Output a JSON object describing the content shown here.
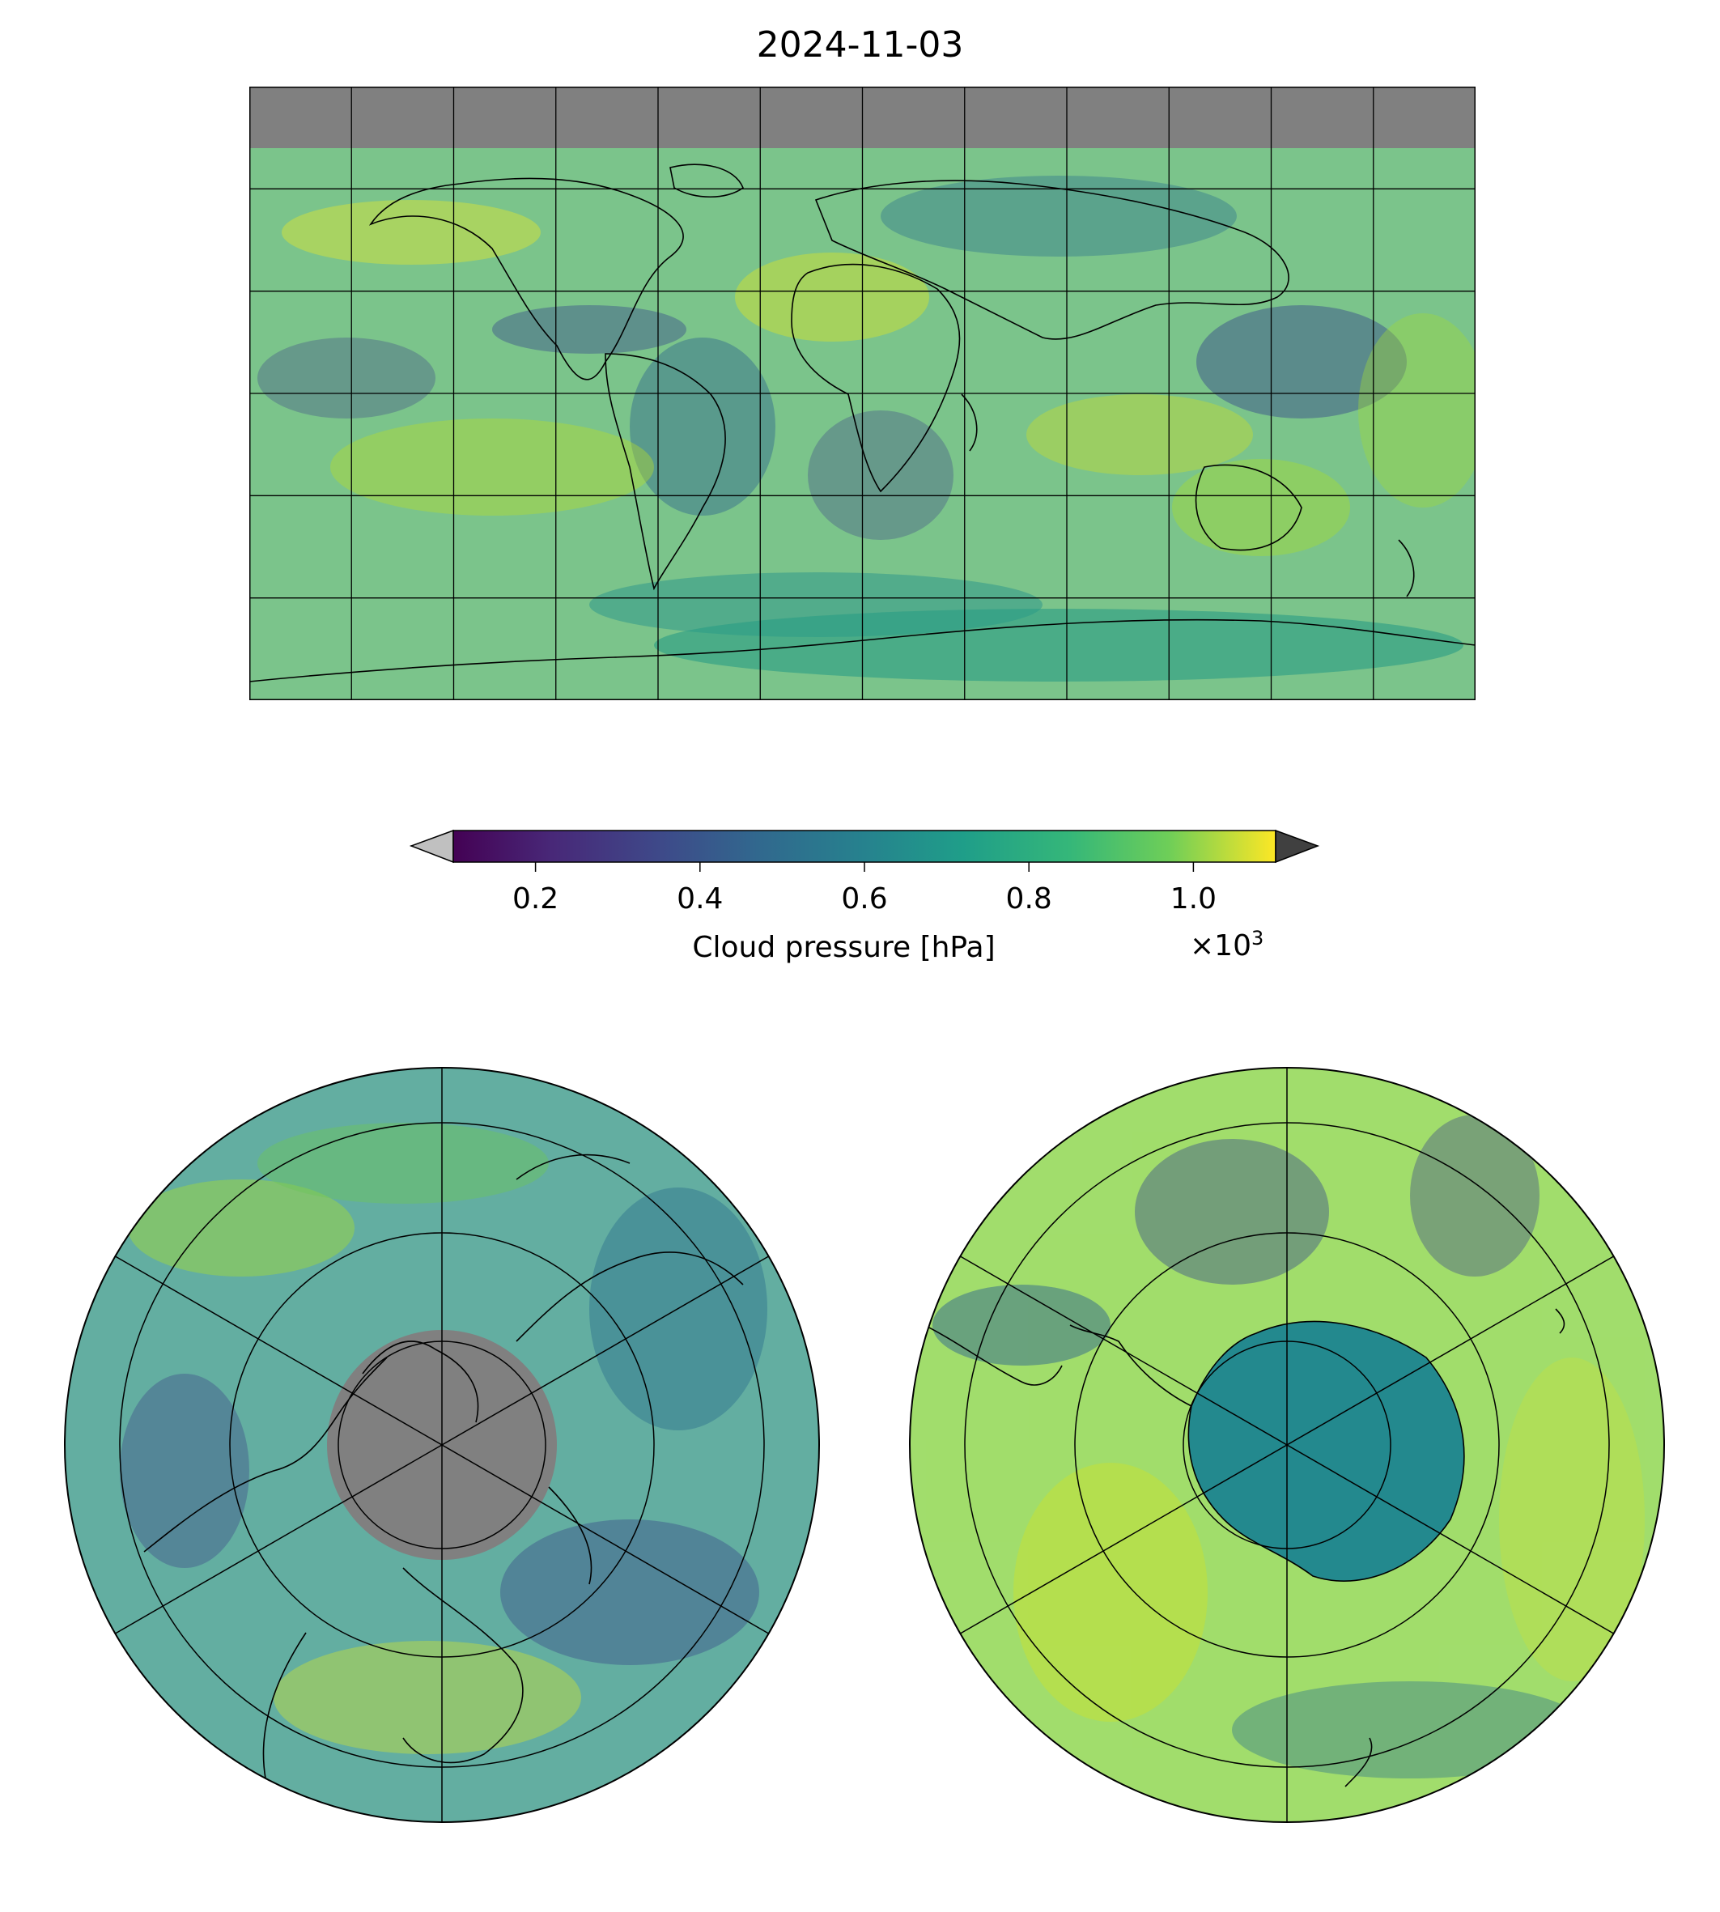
{
  "title": "2024-11-03",
  "colorbar": {
    "label": "Cloud pressure [hPa]",
    "multiplier_base": "×10",
    "multiplier_exp": "3",
    "ticks": [
      "0.2",
      "0.4",
      "0.6",
      "0.8",
      "1.0"
    ],
    "colormap": "viridis",
    "range_scaled": [
      0.1,
      1.1
    ],
    "extend": "both",
    "under_color": "#c0c0c0",
    "over_color": "#404040",
    "colors": [
      "#440154",
      "#3b528b",
      "#21918c",
      "#5ec962",
      "#fde725"
    ]
  },
  "maps": [
    {
      "projection": "equirectangular",
      "extent": "global",
      "missing_color": "#808080",
      "gridlines": true
    },
    {
      "projection": "north-polar-stereographic",
      "missing_color": "#808080",
      "gridlines": true
    },
    {
      "projection": "south-polar-stereographic",
      "gridlines": true
    }
  ]
}
